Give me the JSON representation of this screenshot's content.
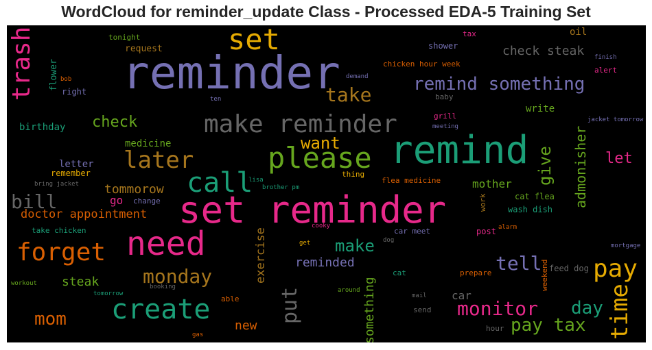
{
  "title": "WordCloud for reminder_update Class - Processed EDA-5 Training Set",
  "words": [
    {
      "text": "set reminder",
      "color": "#e7298a"
    },
    {
      "text": "reminder",
      "color": "#7570b3"
    },
    {
      "text": "remind",
      "color": "#1b9e77"
    },
    {
      "text": "need",
      "color": "#e7298a"
    },
    {
      "text": "make reminder",
      "color": "#666666"
    },
    {
      "text": "please",
      "color": "#66a61e"
    },
    {
      "text": "create",
      "color": "#1b9e77"
    },
    {
      "text": "set",
      "color": "#e6ab02"
    },
    {
      "text": "forget",
      "color": "#d95f02"
    },
    {
      "text": "call",
      "color": "#1b9e77"
    },
    {
      "text": "later",
      "color": "#a6761d"
    },
    {
      "text": "trash",
      "color": "#e7298a"
    },
    {
      "text": "pay",
      "color": "#e6ab02"
    },
    {
      "text": "monitor",
      "color": "#e7298a"
    },
    {
      "text": "monday",
      "color": "#a6761d"
    },
    {
      "text": "remind something",
      "color": "#7570b3"
    },
    {
      "text": "time",
      "color": "#e6ab02"
    },
    {
      "text": "pay tax",
      "color": "#66a61e"
    },
    {
      "text": "mom",
      "color": "#d95f02"
    },
    {
      "text": "bill",
      "color": "#666666"
    },
    {
      "text": "put",
      "color": "#666666"
    },
    {
      "text": "take",
      "color": "#a6761d"
    },
    {
      "text": "want",
      "color": "#e6ab02"
    },
    {
      "text": "give",
      "color": "#66a61e"
    },
    {
      "text": "tell",
      "color": "#7570b3"
    },
    {
      "text": "make",
      "color": "#1b9e77"
    },
    {
      "text": "day",
      "color": "#1b9e77"
    },
    {
      "text": "check",
      "color": "#66a61e"
    },
    {
      "text": "check steak",
      "color": "#666666"
    },
    {
      "text": "admonisher",
      "color": "#66a61e"
    },
    {
      "text": "something",
      "color": "#66a61e"
    },
    {
      "text": "let",
      "color": "#e7298a"
    },
    {
      "text": "tommorow",
      "color": "#a6761d"
    },
    {
      "text": "doctor appointment",
      "color": "#d95f02"
    },
    {
      "text": "reminded",
      "color": "#7570b3"
    },
    {
      "text": "steak",
      "color": "#66a61e"
    },
    {
      "text": "exercise",
      "color": "#a6761d"
    },
    {
      "text": "mother",
      "color": "#66a61e"
    },
    {
      "text": "new",
      "color": "#d95f02"
    },
    {
      "text": "car",
      "color": "#666666"
    },
    {
      "text": "go",
      "color": "#e7298a"
    },
    {
      "text": "oil",
      "color": "#a6761d"
    },
    {
      "text": "write",
      "color": "#66a61e"
    },
    {
      "text": "birthday",
      "color": "#1b9e77"
    },
    {
      "text": "medicine",
      "color": "#66a61e"
    },
    {
      "text": "letter",
      "color": "#7570b3"
    },
    {
      "text": "remember",
      "color": "#e6ab02"
    },
    {
      "text": "request",
      "color": "#a6761d"
    },
    {
      "text": "shower",
      "color": "#7570b3"
    },
    {
      "text": "flower",
      "color": "#1b9e77"
    },
    {
      "text": "right",
      "color": "#7570b3"
    },
    {
      "text": "tonight",
      "color": "#66a61e"
    },
    {
      "text": "tax",
      "color": "#e7298a"
    },
    {
      "text": "chicken hour week",
      "color": "#d95f02"
    },
    {
      "text": "alert",
      "color": "#e7298a"
    },
    {
      "text": "baby",
      "color": "#666666"
    },
    {
      "text": "grill",
      "color": "#e7298a"
    },
    {
      "text": "meeting",
      "color": "#7570b3"
    },
    {
      "text": "jacket tomorrow",
      "color": "#7570b3"
    },
    {
      "text": "finish",
      "color": "#7570b3"
    },
    {
      "text": "demand",
      "color": "#7570b3"
    },
    {
      "text": "ten",
      "color": "#7570b3"
    },
    {
      "text": "bob",
      "color": "#d95f02"
    },
    {
      "text": "flea medicine",
      "color": "#d95f02"
    },
    {
      "text": "thing",
      "color": "#e6ab02"
    },
    {
      "text": "lisa",
      "color": "#1b9e77"
    },
    {
      "text": "brother pm",
      "color": "#1b9e77"
    },
    {
      "text": "bring jacket",
      "color": "#666666"
    },
    {
      "text": "change",
      "color": "#7570b3"
    },
    {
      "text": "cat flea",
      "color": "#66a61e"
    },
    {
      "text": "wash dish",
      "color": "#1b9e77"
    },
    {
      "text": "work",
      "color": "#a6761d"
    },
    {
      "text": "take chicken",
      "color": "#1b9e77"
    },
    {
      "text": "cooky",
      "color": "#e7298a"
    },
    {
      "text": "alarm",
      "color": "#d95f02"
    },
    {
      "text": "post",
      "color": "#e7298a"
    },
    {
      "text": "car meet",
      "color": "#7570b3"
    },
    {
      "text": "dog",
      "color": "#666666"
    },
    {
      "text": "get",
      "color": "#e6ab02"
    },
    {
      "text": "mortgage",
      "color": "#7570b3"
    },
    {
      "text": "weekend",
      "color": "#d95f02"
    },
    {
      "text": "feed dog",
      "color": "#666666"
    },
    {
      "text": "prepare",
      "color": "#d95f02"
    },
    {
      "text": "cat",
      "color": "#1b9e77"
    },
    {
      "text": "around",
      "color": "#66a61e"
    },
    {
      "text": "workout",
      "color": "#66a61e"
    },
    {
      "text": "booking",
      "color": "#666666"
    },
    {
      "text": "tomorrow",
      "color": "#1b9e77"
    },
    {
      "text": "able",
      "color": "#d95f02"
    },
    {
      "text": "mail",
      "color": "#666666"
    },
    {
      "text": "send",
      "color": "#666666"
    },
    {
      "text": "hour",
      "color": "#666666"
    },
    {
      "text": "gas",
      "color": "#d95f02"
    }
  ]
}
